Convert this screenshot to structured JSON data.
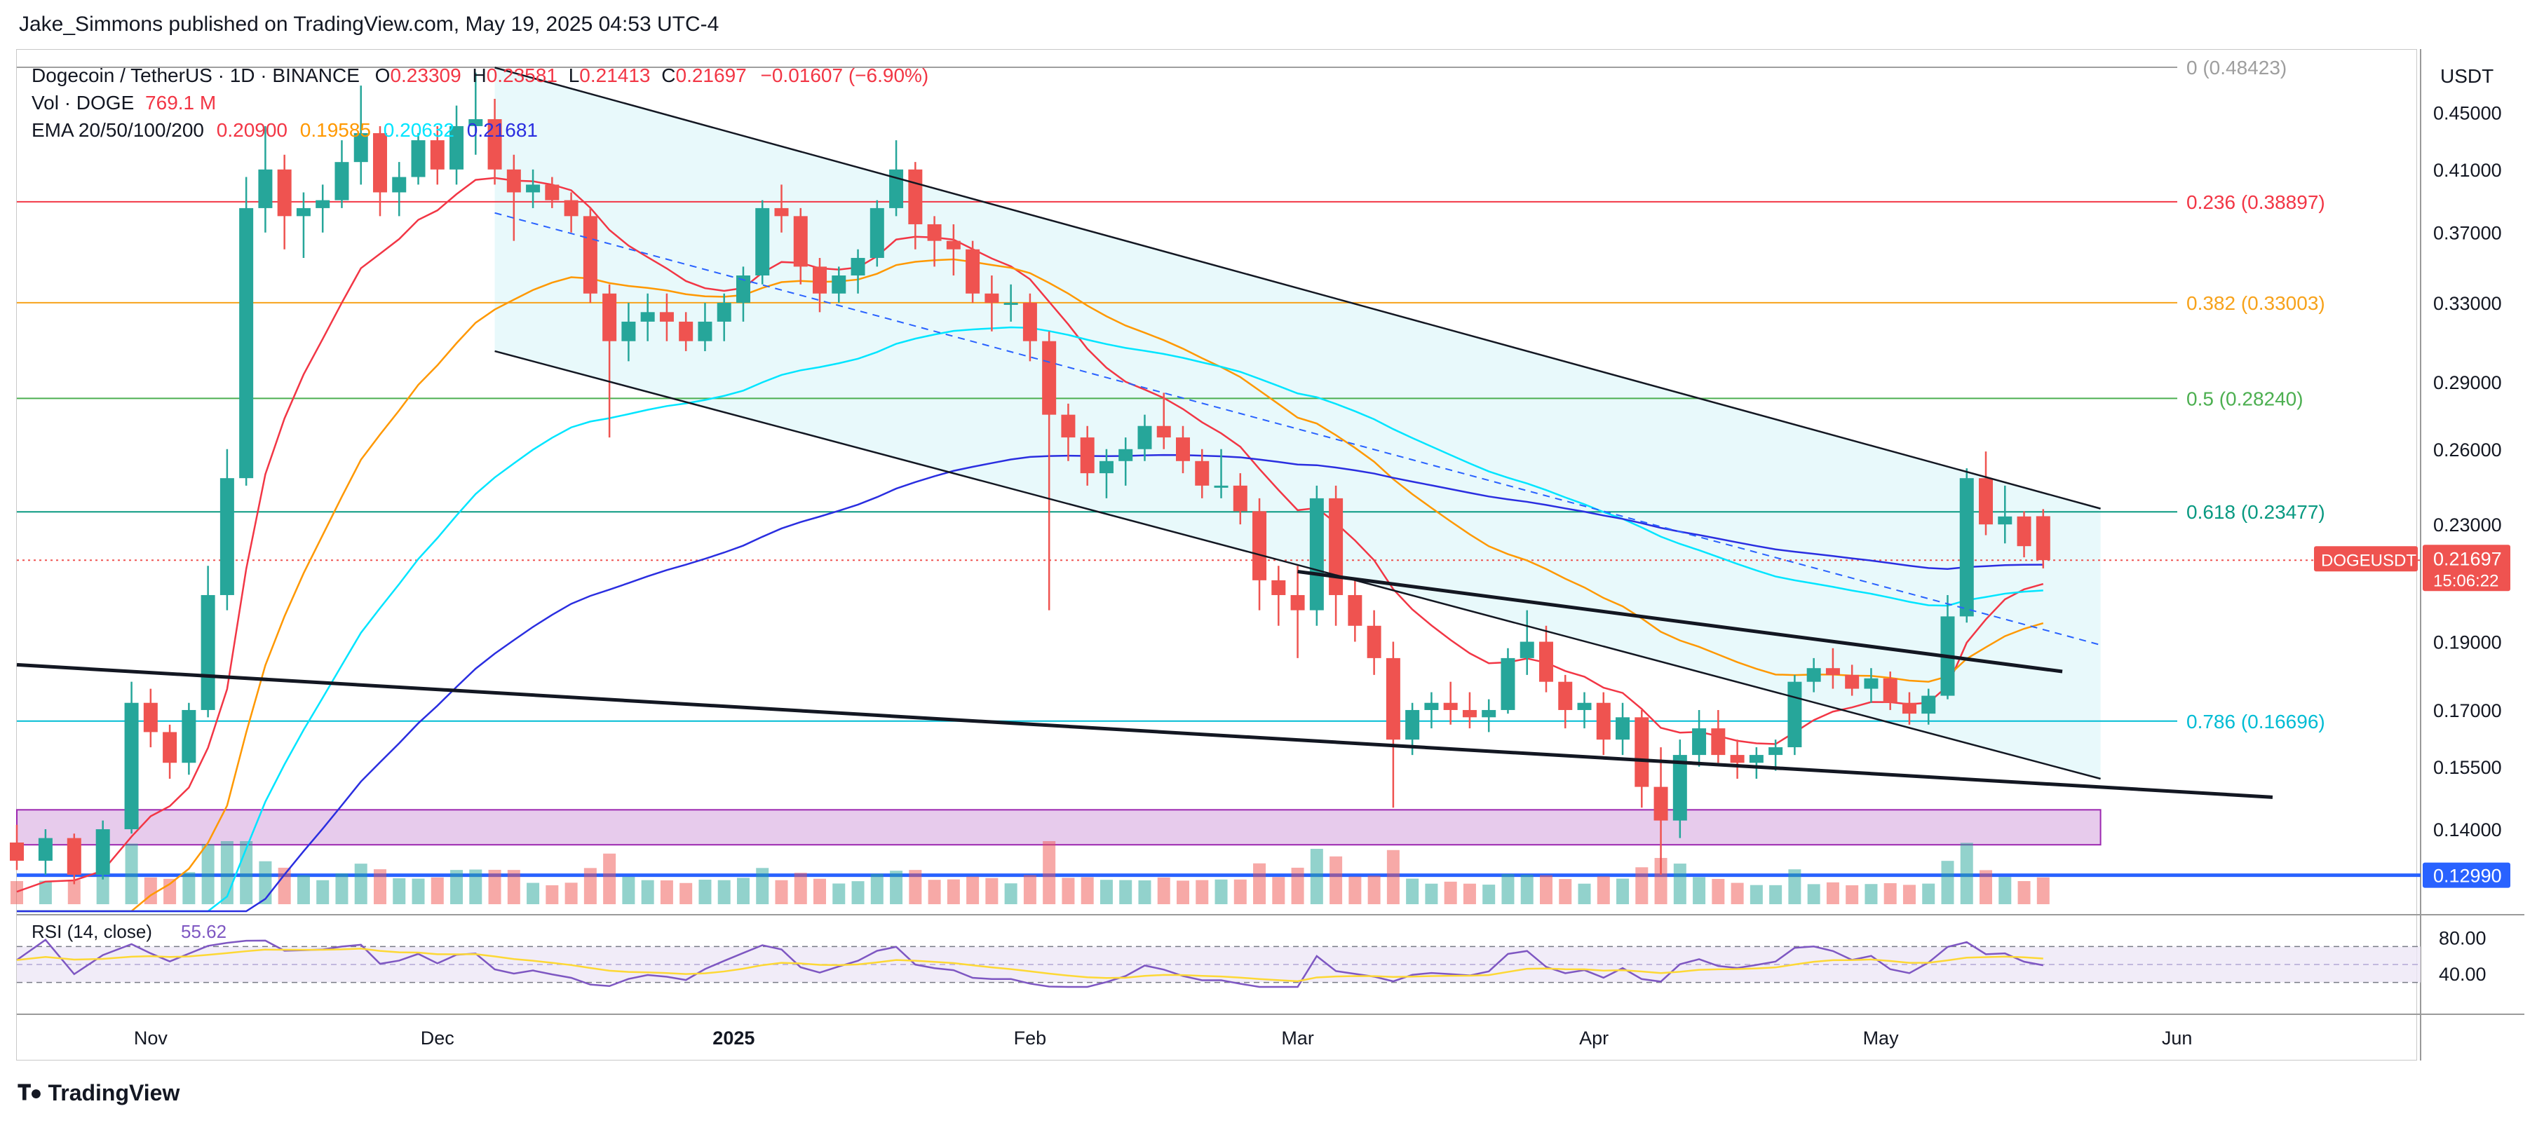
{
  "publisher": "Jake_Simmons published on TradingView.com, May 19, 2025 04:53 UTC-4",
  "footer_logo": "TradingView",
  "legend": {
    "title": "Dogecoin / TetherUS · 1D · BINANCE",
    "o_label": "O",
    "o": "0.23309",
    "h_label": "H",
    "h": "0.23581",
    "l_label": "L",
    "l": "0.21413",
    "c_label": "C",
    "c": "0.21697",
    "change": "−0.01607 (−6.90%)",
    "vol_label": "Vol · DOGE",
    "vol": "769.1 M",
    "ema_label": "EMA 20/50/100/200",
    "ema20": "0.20900",
    "ema50": "0.19585",
    "ema100": "0.20632",
    "ema200": "0.21681"
  },
  "rsi_label": "RSI (14, close)",
  "rsi_value": "55.62",
  "rsi_ma": "61.35",
  "colors": {
    "up": "#26a69a",
    "down": "#ef5350",
    "ema20": "#f23645",
    "ema50": "#ff9800",
    "ema100": "#00e5ff",
    "ema200": "#2a2ee0",
    "channel_fill": "#e0f7fa",
    "support_zone": "#e1bee7",
    "support_line": "#2962ff",
    "rsi": "#7e57c2",
    "rsi_ma": "#fdd835"
  },
  "chart_data": [
    {
      "type": "candlestick",
      "title": "Dogecoin / TetherUS · 1D · BINANCE",
      "currency": "USDT",
      "x_ticks": [
        "Nov",
        "Dec",
        "2025",
        "Feb",
        "Mar",
        "Apr",
        "May",
        "Jun"
      ],
      "y_ticks": [
        "0.45000",
        "0.41000",
        "0.37000",
        "0.33000",
        "0.29000",
        "0.26000",
        "0.23000",
        "0.19000",
        "0.17000",
        "0.15500",
        "0.14000",
        "0.12990"
      ],
      "ylim": [
        0.1225,
        0.496
      ],
      "scale": "log",
      "last_price": "0.21697",
      "last_label": "DOGEUSDT",
      "countdown": "15:06:22",
      "support_line_value": "0.12990",
      "support_zone": [
        0.1365,
        0.1445
      ],
      "fib_levels": [
        {
          "label": "0 (0.48423)",
          "value": 0.48423,
          "color": "#9e9e9e"
        },
        {
          "label": "0.236 (0.38897)",
          "value": 0.38897,
          "color": "#f23645"
        },
        {
          "label": "0.382 (0.33003)",
          "value": 0.33003,
          "color": "#f7a21b"
        },
        {
          "label": "0.5 (0.28240)",
          "value": 0.2824,
          "color": "#4caf50"
        },
        {
          "label": "0.618 (0.23477)",
          "value": 0.23477,
          "color": "#089981"
        },
        {
          "label": "0.786 (0.16696)",
          "value": 0.16696,
          "color": "#00bcd4"
        }
      ],
      "candles": [
        [
          "2024-10-18",
          0.137,
          0.141,
          0.131,
          0.133
        ],
        [
          "2024-10-21",
          0.133,
          0.14,
          0.13,
          0.138
        ],
        [
          "2024-10-24",
          0.138,
          0.139,
          0.128,
          0.13
        ],
        [
          "2024-10-27",
          0.13,
          0.142,
          0.129,
          0.14
        ],
        [
          "2024-10-30",
          0.14,
          0.178,
          0.139,
          0.172
        ],
        [
          "2024-11-01",
          0.172,
          0.176,
          0.16,
          0.164
        ],
        [
          "2024-11-03",
          0.164,
          0.166,
          0.152,
          0.156
        ],
        [
          "2024-11-05",
          0.156,
          0.172,
          0.153,
          0.17
        ],
        [
          "2024-11-07",
          0.17,
          0.215,
          0.168,
          0.205
        ],
        [
          "2024-11-09",
          0.205,
          0.26,
          0.2,
          0.248
        ],
        [
          "2024-11-11",
          0.248,
          0.405,
          0.245,
          0.385
        ],
        [
          "2024-11-13",
          0.385,
          0.44,
          0.37,
          0.41
        ],
        [
          "2024-11-15",
          0.41,
          0.42,
          0.36,
          0.38
        ],
        [
          "2024-11-17",
          0.38,
          0.395,
          0.355,
          0.385
        ],
        [
          "2024-11-19",
          0.385,
          0.4,
          0.37,
          0.39
        ],
        [
          "2024-11-21",
          0.39,
          0.43,
          0.385,
          0.415
        ],
        [
          "2024-11-23",
          0.415,
          0.47,
          0.4,
          0.435
        ],
        [
          "2024-11-25",
          0.435,
          0.44,
          0.38,
          0.395
        ],
        [
          "2024-11-27",
          0.395,
          0.415,
          0.38,
          0.405
        ],
        [
          "2024-11-29",
          0.405,
          0.435,
          0.4,
          0.43
        ],
        [
          "2024-12-01",
          0.43,
          0.44,
          0.4,
          0.41
        ],
        [
          "2024-12-03",
          0.41,
          0.455,
          0.4,
          0.44
        ],
        [
          "2024-12-05",
          0.44,
          0.48,
          0.42,
          0.445
        ],
        [
          "2024-12-07",
          0.445,
          0.46,
          0.4,
          0.41
        ],
        [
          "2024-12-09",
          0.41,
          0.42,
          0.365,
          0.395
        ],
        [
          "2024-12-11",
          0.395,
          0.41,
          0.385,
          0.4
        ],
        [
          "2024-12-13",
          0.4,
          0.405,
          0.385,
          0.39
        ],
        [
          "2024-12-15",
          0.39,
          0.395,
          0.37,
          0.38
        ],
        [
          "2024-12-17",
          0.38,
          0.385,
          0.33,
          0.335
        ],
        [
          "2024-12-19",
          0.335,
          0.34,
          0.265,
          0.31
        ],
        [
          "2024-12-21",
          0.31,
          0.33,
          0.3,
          0.32
        ],
        [
          "2024-12-23",
          0.32,
          0.335,
          0.31,
          0.325
        ],
        [
          "2024-12-25",
          0.325,
          0.335,
          0.31,
          0.32
        ],
        [
          "2024-12-27",
          0.32,
          0.325,
          0.305,
          0.31
        ],
        [
          "2024-12-29",
          0.31,
          0.33,
          0.305,
          0.32
        ],
        [
          "2024-12-31",
          0.32,
          0.335,
          0.31,
          0.33
        ],
        [
          "2025-01-02",
          0.33,
          0.35,
          0.32,
          0.345
        ],
        [
          "2025-01-04",
          0.345,
          0.39,
          0.34,
          0.385
        ],
        [
          "2025-01-06",
          0.385,
          0.4,
          0.37,
          0.38
        ],
        [
          "2025-01-08",
          0.38,
          0.385,
          0.34,
          0.35
        ],
        [
          "2025-01-10",
          0.35,
          0.355,
          0.325,
          0.335
        ],
        [
          "2025-01-12",
          0.335,
          0.35,
          0.33,
          0.345
        ],
        [
          "2025-01-14",
          0.345,
          0.36,
          0.335,
          0.355
        ],
        [
          "2025-01-16",
          0.355,
          0.39,
          0.35,
          0.385
        ],
        [
          "2025-01-18",
          0.385,
          0.43,
          0.38,
          0.41
        ],
        [
          "2025-01-20",
          0.41,
          0.415,
          0.36,
          0.375
        ],
        [
          "2025-01-22",
          0.375,
          0.38,
          0.35,
          0.365
        ],
        [
          "2025-01-24",
          0.365,
          0.375,
          0.345,
          0.36
        ],
        [
          "2025-01-26",
          0.36,
          0.365,
          0.33,
          0.335
        ],
        [
          "2025-01-28",
          0.335,
          0.345,
          0.315,
          0.33
        ],
        [
          "2025-01-30",
          0.33,
          0.34,
          0.32,
          0.33
        ],
        [
          "2025-02-01",
          0.33,
          0.335,
          0.3,
          0.31
        ],
        [
          "2025-02-03",
          0.31,
          0.315,
          0.2,
          0.275
        ],
        [
          "2025-02-05",
          0.275,
          0.28,
          0.255,
          0.265
        ],
        [
          "2025-02-07",
          0.265,
          0.27,
          0.245,
          0.25
        ],
        [
          "2025-02-09",
          0.25,
          0.26,
          0.24,
          0.255
        ],
        [
          "2025-02-11",
          0.255,
          0.265,
          0.245,
          0.26
        ],
        [
          "2025-02-13",
          0.26,
          0.275,
          0.255,
          0.27
        ],
        [
          "2025-02-15",
          0.27,
          0.285,
          0.26,
          0.265
        ],
        [
          "2025-02-17",
          0.265,
          0.27,
          0.25,
          0.255
        ],
        [
          "2025-02-19",
          0.255,
          0.26,
          0.24,
          0.245
        ],
        [
          "2025-02-21",
          0.245,
          0.26,
          0.24,
          0.245
        ],
        [
          "2025-02-23",
          0.245,
          0.25,
          0.23,
          0.235
        ],
        [
          "2025-02-25",
          0.235,
          0.24,
          0.2,
          0.21
        ],
        [
          "2025-02-27",
          0.21,
          0.215,
          0.195,
          0.205
        ],
        [
          "2025-03-01",
          0.205,
          0.215,
          0.185,
          0.2
        ],
        [
          "2025-03-03",
          0.2,
          0.245,
          0.195,
          0.24
        ],
        [
          "2025-03-05",
          0.24,
          0.245,
          0.195,
          0.205
        ],
        [
          "2025-03-07",
          0.205,
          0.21,
          0.19,
          0.195
        ],
        [
          "2025-03-09",
          0.195,
          0.2,
          0.18,
          0.185
        ],
        [
          "2025-03-11",
          0.185,
          0.19,
          0.145,
          0.162
        ],
        [
          "2025-03-13",
          0.162,
          0.172,
          0.158,
          0.17
        ],
        [
          "2025-03-15",
          0.17,
          0.175,
          0.165,
          0.172
        ],
        [
          "2025-03-17",
          0.172,
          0.178,
          0.166,
          0.17
        ],
        [
          "2025-03-19",
          0.17,
          0.175,
          0.165,
          0.168
        ],
        [
          "2025-03-21",
          0.168,
          0.173,
          0.164,
          0.17
        ],
        [
          "2025-03-23",
          0.17,
          0.188,
          0.169,
          0.185
        ],
        [
          "2025-03-25",
          0.185,
          0.2,
          0.18,
          0.19
        ],
        [
          "2025-03-27",
          0.19,
          0.195,
          0.175,
          0.178
        ],
        [
          "2025-03-29",
          0.178,
          0.18,
          0.165,
          0.17
        ],
        [
          "2025-03-31",
          0.17,
          0.175,
          0.165,
          0.172
        ],
        [
          "2025-04-02",
          0.172,
          0.175,
          0.158,
          0.162
        ],
        [
          "2025-04-04",
          0.162,
          0.172,
          0.158,
          0.168
        ],
        [
          "2025-04-06",
          0.168,
          0.17,
          0.145,
          0.15
        ],
        [
          "2025-04-08",
          0.15,
          0.16,
          0.13,
          0.142
        ],
        [
          "2025-04-10",
          0.142,
          0.162,
          0.138,
          0.158
        ],
        [
          "2025-04-12",
          0.158,
          0.17,
          0.155,
          0.165
        ],
        [
          "2025-04-14",
          0.165,
          0.17,
          0.156,
          0.158
        ],
        [
          "2025-04-16",
          0.158,
          0.162,
          0.152,
          0.156
        ],
        [
          "2025-04-18",
          0.156,
          0.16,
          0.152,
          0.158
        ],
        [
          "2025-04-20",
          0.158,
          0.162,
          0.154,
          0.16
        ],
        [
          "2025-04-22",
          0.16,
          0.18,
          0.158,
          0.178
        ],
        [
          "2025-04-24",
          0.178,
          0.185,
          0.175,
          0.182
        ],
        [
          "2025-04-26",
          0.182,
          0.188,
          0.176,
          0.18
        ],
        [
          "2025-04-28",
          0.18,
          0.183,
          0.174,
          0.176
        ],
        [
          "2025-04-30",
          0.176,
          0.182,
          0.172,
          0.179
        ],
        [
          "2025-05-02",
          0.179,
          0.181,
          0.17,
          0.172
        ],
        [
          "2025-05-04",
          0.172,
          0.175,
          0.166,
          0.169
        ],
        [
          "2025-05-06",
          0.169,
          0.176,
          0.166,
          0.174
        ],
        [
          "2025-05-08",
          0.174,
          0.205,
          0.173,
          0.198
        ],
        [
          "2025-05-10",
          0.198,
          0.252,
          0.196,
          0.248
        ],
        [
          "2025-05-12",
          0.248,
          0.259,
          0.226,
          0.23
        ],
        [
          "2025-05-14",
          0.23,
          0.245,
          0.223,
          0.233
        ],
        [
          "2025-05-16",
          0.233,
          0.235,
          0.218,
          0.222
        ],
        [
          "2025-05-18",
          0.2331,
          0.2358,
          0.2141,
          0.217
        ]
      ]
    },
    {
      "type": "line",
      "title": "RSI (14, close)",
      "ylim": [
        0,
        100
      ],
      "y_ticks": [
        "80.00",
        "40.00"
      ],
      "band": [
        30,
        70
      ],
      "value": "55.62"
    }
  ]
}
